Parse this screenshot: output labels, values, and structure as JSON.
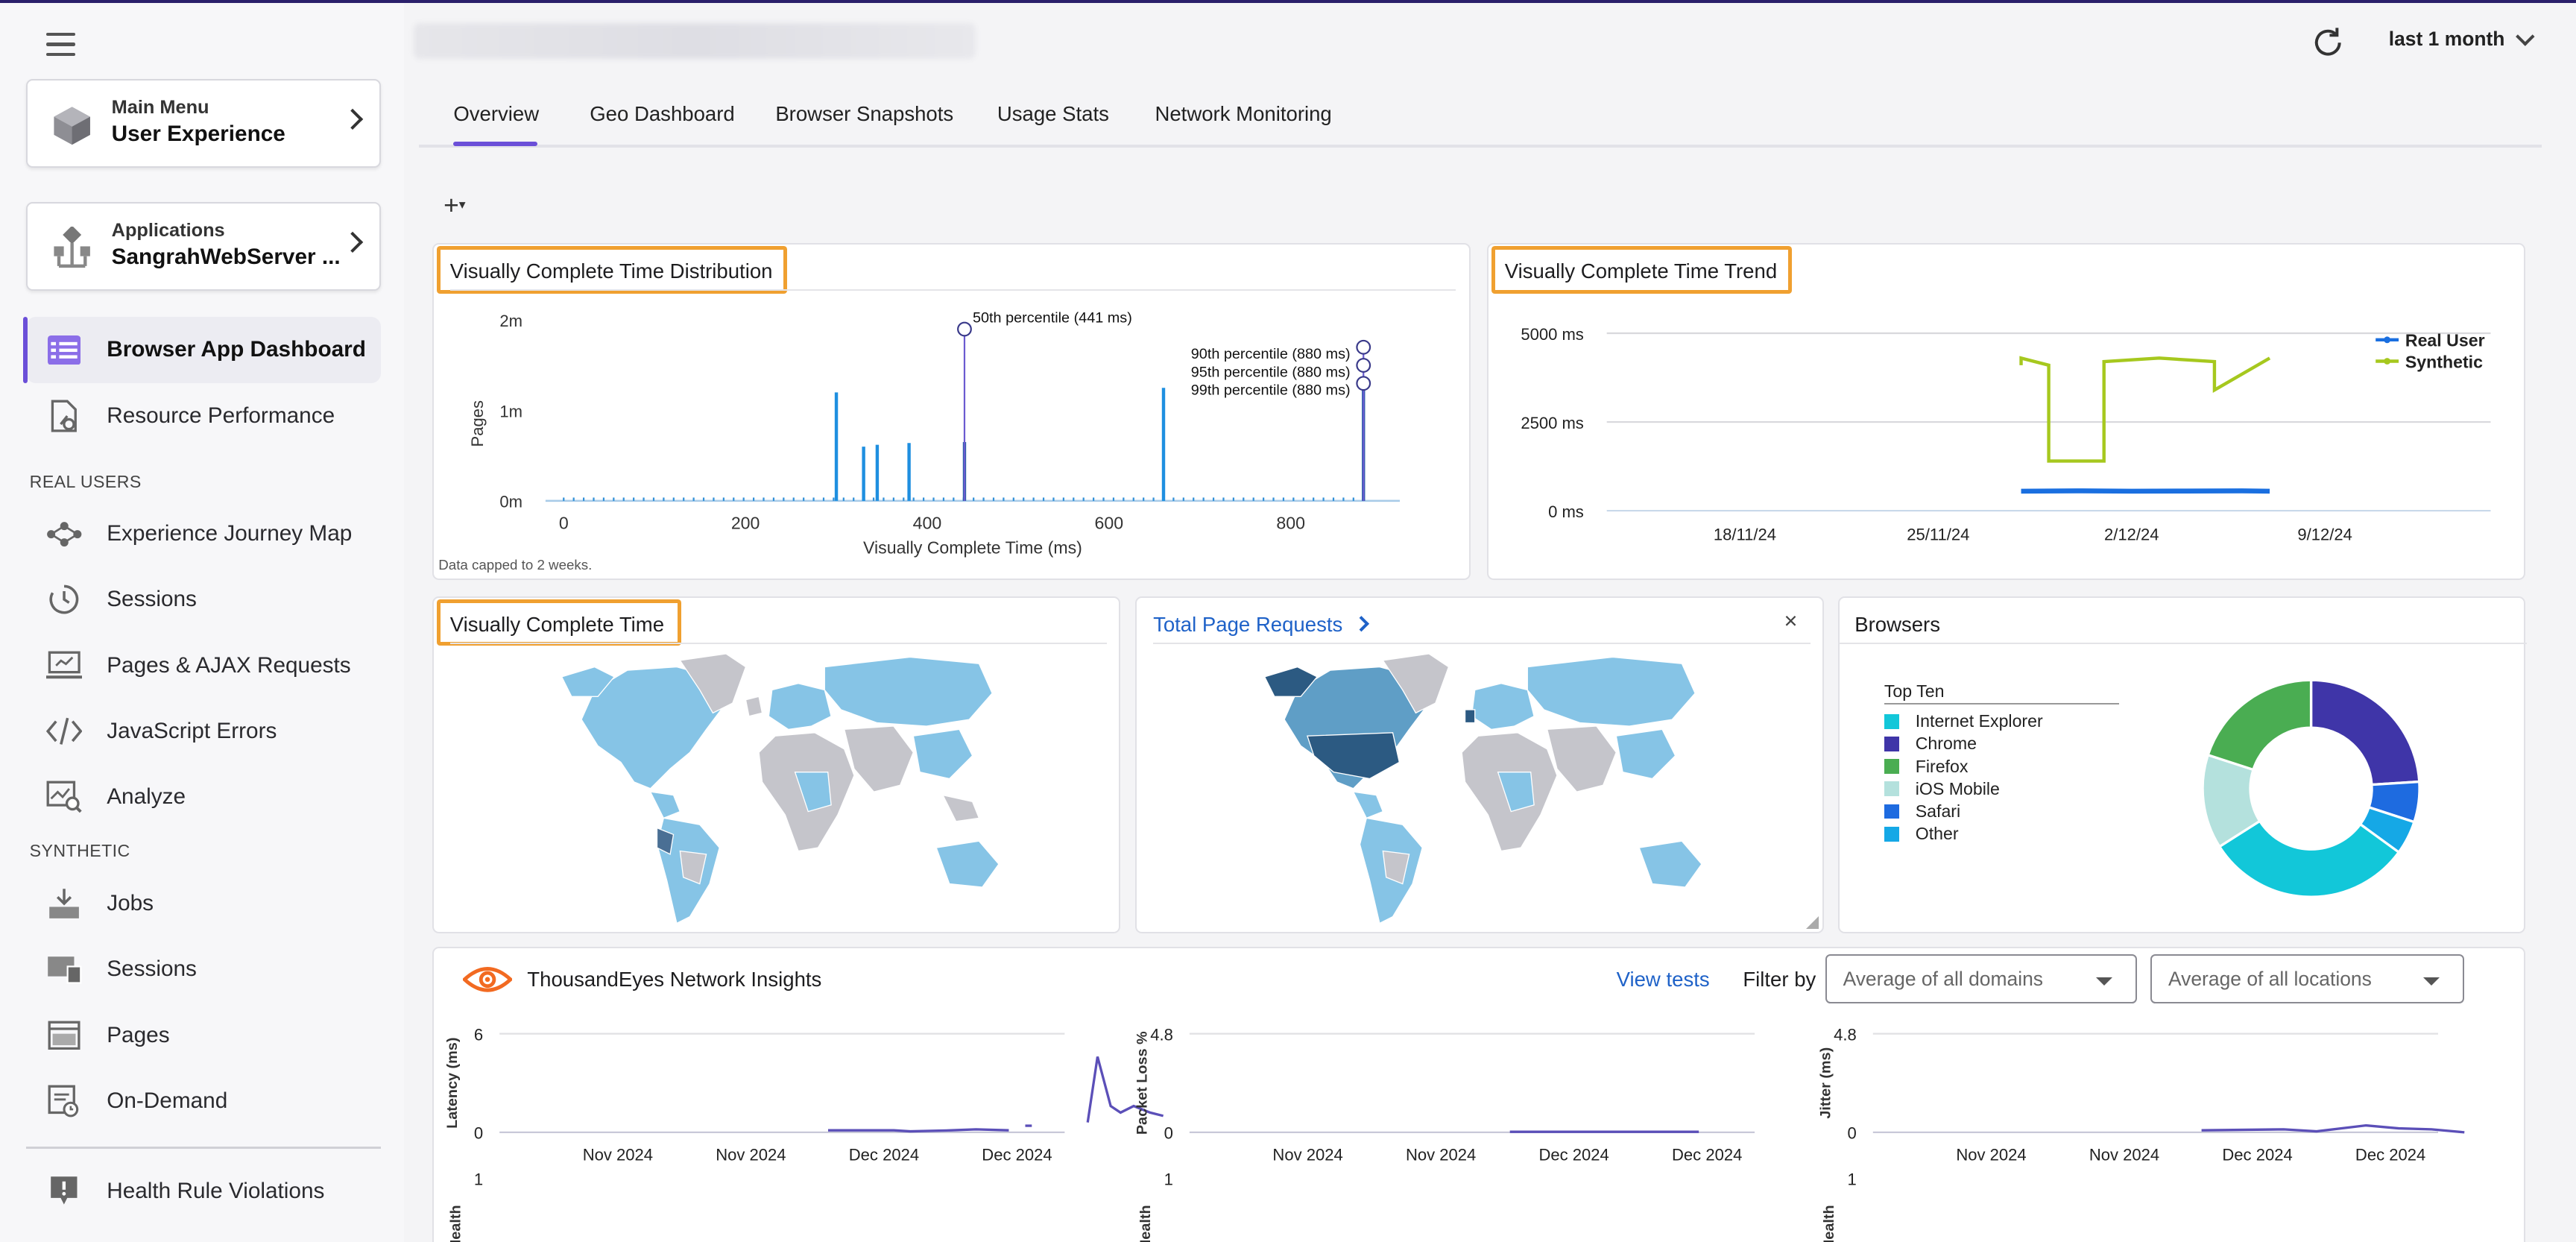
{
  "header": {
    "time_range": "last 1 month"
  },
  "sidebar": {
    "main_menu": {
      "label": "Main Menu",
      "value": "User Experience"
    },
    "applications": {
      "label": "Applications",
      "value": "SangrahWebServer ..."
    },
    "items": [
      {
        "label": "Browser App Dashboard",
        "icon": "dashboard-icon"
      },
      {
        "label": "Resource Performance",
        "icon": "resource-icon"
      }
    ],
    "real_users_heading": "REAL USERS",
    "real_users": [
      {
        "label": "Experience Journey Map",
        "icon": "journey-map-icon"
      },
      {
        "label": "Sessions",
        "icon": "sessions-icon"
      },
      {
        "label": "Pages & AJAX Requests",
        "icon": "pages-ajax-icon"
      },
      {
        "label": "JavaScript Errors",
        "icon": "code-icon"
      },
      {
        "label": "Analyze",
        "icon": "analyze-icon"
      }
    ],
    "synthetic_heading": "SYNTHETIC",
    "synthetic": [
      {
        "label": "Jobs",
        "icon": "jobs-icon"
      },
      {
        "label": "Sessions",
        "icon": "synthetic-sessions-icon"
      },
      {
        "label": "Pages",
        "icon": "pages-icon"
      },
      {
        "label": "On-Demand",
        "icon": "on-demand-icon"
      }
    ],
    "health": {
      "label": "Health Rule Violations",
      "icon": "health-violation-icon"
    }
  },
  "tabs": [
    "Overview",
    "Geo Dashboard",
    "Browser Snapshots",
    "Usage Stats",
    "Network Monitoring"
  ],
  "active_tab": "Overview",
  "add_widget": "+",
  "vct_distribution": {
    "title": "Visually Complete Time Distribution",
    "caption": "Data capped to 2 weeks.",
    "chart_data": {
      "type": "bar",
      "xlabel": "Visually Complete Time (ms)",
      "ylabel": "Pages",
      "xlim": [
        -20,
        920
      ],
      "ylim": [
        0,
        2000000
      ],
      "x_ticks": [
        "0",
        "200",
        "400",
        "600",
        "800"
      ],
      "y_ticks": [
        "0m",
        "1m",
        "2m"
      ],
      "bars": [
        {
          "x": 300,
          "y": 1200000
        },
        {
          "x": 330,
          "y": 600000
        },
        {
          "x": 345,
          "y": 620000
        },
        {
          "x": 380,
          "y": 640000
        },
        {
          "x": 441,
          "y": 650000
        },
        {
          "x": 660,
          "y": 1250000
        },
        {
          "x": 880,
          "y": 1350000
        }
      ],
      "annotations": [
        {
          "label": "50th percentile (441 ms)",
          "x": 441,
          "y": 1900000
        },
        {
          "label": "90th percentile (880 ms)",
          "x": 880,
          "y": 1700000
        },
        {
          "label": "95th percentile (880 ms)",
          "x": 880,
          "y": 1500000
        },
        {
          "label": "99th percentile (880 ms)",
          "x": 880,
          "y": 1300000
        }
      ]
    }
  },
  "vct_trend": {
    "title": "Visually Complete Time Trend",
    "chart_data": {
      "type": "line",
      "ylim": [
        0,
        5000
      ],
      "y_ticks": [
        "0 ms",
        "2500 ms",
        "5000 ms"
      ],
      "x_ticks": [
        "18/11/24",
        "25/11/24",
        "2/12/24",
        "9/12/24"
      ],
      "legend": [
        "Real User",
        "Synthetic"
      ],
      "legend_position": "top-right",
      "series": [
        {
          "name": "Real User",
          "color": "#1a6fe0",
          "x": [
            "28/11/24",
            "30/11/24",
            "2/12/24",
            "4/12/24",
            "6/12/24",
            "7/12/24"
          ],
          "y": [
            550,
            560,
            550,
            555,
            560,
            550
          ]
        },
        {
          "name": "Synthetic",
          "color": "#a6c81e",
          "x": [
            "28/11/24",
            "28/11/24",
            "29/11/24",
            "29/11/24",
            "1/12/24",
            "1/12/24",
            "3/12/24",
            "5/12/24",
            "5/12/24",
            "7/12/24"
          ],
          "y": [
            4100,
            4300,
            4100,
            1400,
            1400,
            4200,
            4300,
            4200,
            3400,
            4300
          ]
        }
      ]
    }
  },
  "vct_map": {
    "title": "Visually Complete Time"
  },
  "page_requests": {
    "title": "Total Page Requests",
    "close": "×"
  },
  "browsers": {
    "title": "Browsers",
    "legend_title": "Top Ten",
    "chart_data": {
      "type": "pie",
      "categories": [
        "Internet Explorer",
        "Chrome",
        "Firefox",
        "iOS Mobile",
        "Safari",
        "Other"
      ],
      "values": [
        31,
        24,
        20,
        14,
        6,
        5
      ],
      "colors": [
        "#12c7d9",
        "#3f35a8",
        "#4aad52",
        "#b4e1dd",
        "#1e6be0",
        "#15a8e6"
      ]
    }
  },
  "network": {
    "title": "ThousandEyes Network Insights",
    "view_tests": "View tests",
    "filter_by": "Filter by",
    "domains": "Average of all domains",
    "locations": "Average of all locations",
    "charts": [
      {
        "ylabel": "Latency (ms)",
        "ymax": "6",
        "ymin": "0",
        "x_ticks": [
          "Nov 2024",
          "Nov 2024",
          "Dec 2024",
          "Dec 2024"
        ],
        "health": "Health",
        "health_max": "1"
      },
      {
        "ylabel": "Packet Loss %",
        "ymax": "4.8",
        "ymin": "0",
        "x_ticks": [
          "Nov 2024",
          "Nov 2024",
          "Dec 2024",
          "Dec 2024"
        ],
        "health": "Health",
        "health_max": "1"
      },
      {
        "ylabel": "Jitter (ms)",
        "ymax": "4.8",
        "ymin": "0",
        "x_ticks": [
          "Nov 2024",
          "Nov 2024",
          "Dec 2024",
          "Dec 2024"
        ],
        "health": "Health",
        "health_max": "1"
      }
    ]
  }
}
